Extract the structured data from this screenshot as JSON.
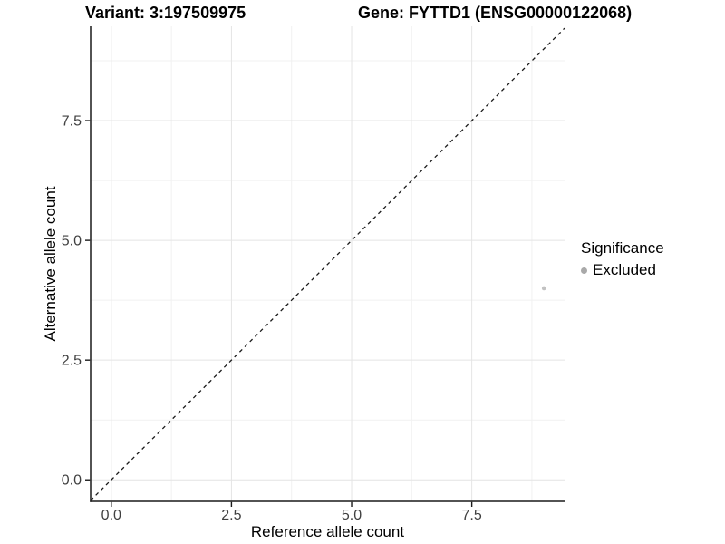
{
  "header": {
    "title_left": "Variant: 3:197509975",
    "title_right": "Gene: FYTTD1 (ENSG00000122068)"
  },
  "chart_data": {
    "type": "scatter",
    "title": "Variant: 3:197509975 / Gene: FYTTD1 (ENSG00000122068)",
    "xlabel": "Reference allele count",
    "ylabel": "Alternative allele count",
    "xlim": [
      -0.43,
      9.43
    ],
    "ylim": [
      -0.45,
      9.47
    ],
    "x_ticks": [
      0,
      2.5,
      5,
      7.5
    ],
    "x_tick_labels": [
      "0.0",
      "2.5",
      "5.0",
      "7.5"
    ],
    "y_ticks": [
      0,
      2.5,
      5,
      7.5
    ],
    "y_tick_labels": [
      "0.0",
      "2.5",
      "5.0",
      "7.5"
    ],
    "x_minor_ticks": [
      1.25,
      3.75,
      6.25,
      8.75
    ],
    "y_minor_ticks": [
      1.25,
      3.75,
      6.25,
      8.75
    ],
    "grid": "major+minor",
    "series": [
      {
        "name": "Excluded",
        "points": [
          {
            "x": 9,
            "y": 4
          }
        ],
        "color": "#c2c2c2",
        "marker_radius": 2.3
      }
    ],
    "reference_line": {
      "kind": "identity y=x",
      "style": "dashed",
      "color": "#1a1a1a"
    },
    "legend": {
      "title": "Significance",
      "position": "right",
      "items": [
        {
          "label": "Excluded",
          "swatch_color": "#a9a9a9"
        }
      ]
    }
  },
  "colors": {
    "background": "#ffffff",
    "grid_major": "#e4e4e4",
    "grid_minor": "#f1f1f1",
    "axis_line": "#1a1a1a",
    "tick_mark": "#1a1a1a",
    "tick_label": "#404040"
  }
}
